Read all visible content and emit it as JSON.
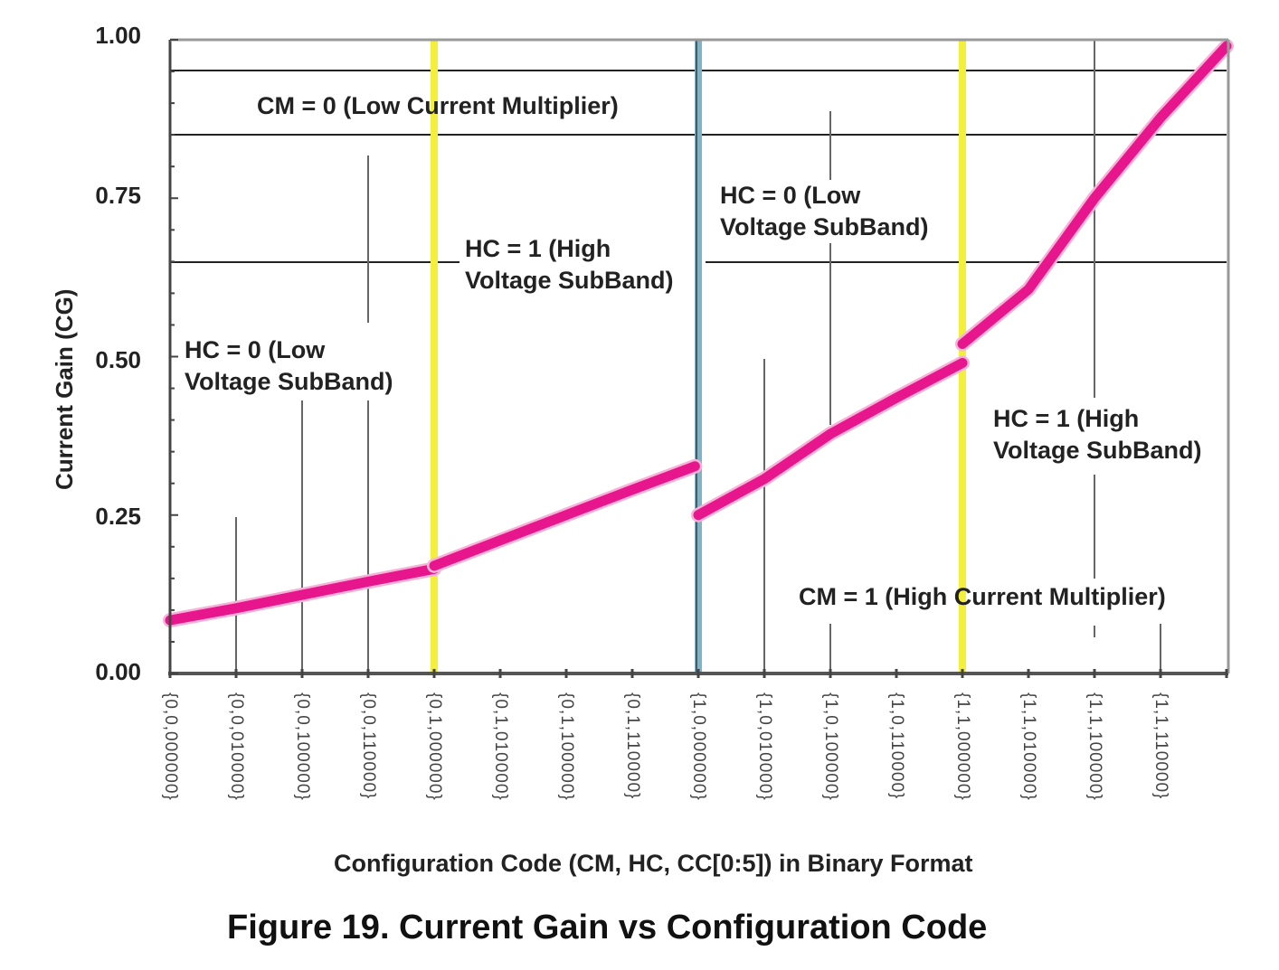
{
  "chart_data": {
    "type": "line",
    "title": "Figure 19. Current Gain vs Configuration Code",
    "xlabel": "Configuration Code (CM, HC, CC[0:5]) in Binary Format",
    "ylabel": "Current Gain (CG)",
    "ylim": [
      0,
      1
    ],
    "yticks": [
      "0.00",
      "0.25",
      "0.50",
      "0.75",
      "1.00"
    ],
    "ytick_values": [
      0,
      0.25,
      0.5,
      0.75,
      1.0
    ],
    "xlim": [
      0,
      16
    ],
    "categories": [
      "{0,0,000000}",
      "{0,0,010000}",
      "{0,0,100000}",
      "{0,0,110000}",
      "{0,1,000000}",
      "{0,1,010000}",
      "{0,1,100000}",
      "{0,1,110000}",
      "{1,0,000000}",
      "{1,0,010000}",
      "{1,0,100000}",
      "{1,0,110000}",
      "{1,1,000000}",
      "{1,1,010000}",
      "{1,1,100000}",
      "{1,1,110000}"
    ],
    "series": [
      {
        "name": "CM=0, HC=0",
        "x": [
          0,
          1,
          2,
          3,
          4
        ],
        "values": [
          0.084,
          0.103,
          0.124,
          0.145,
          0.165
        ]
      },
      {
        "name": "CM=0, HC=1",
        "x": [
          4,
          5,
          6,
          7,
          7.95
        ],
        "values": [
          0.17,
          0.21,
          0.25,
          0.29,
          0.327
        ]
      },
      {
        "name": "CM=1, HC=0",
        "x": [
          8,
          9,
          10,
          11,
          12
        ],
        "values": [
          0.25,
          0.307,
          0.378,
          0.435,
          0.49
        ]
      },
      {
        "name": "CM=1, HC=1",
        "x": [
          12,
          13,
          14,
          15,
          16
        ],
        "values": [
          0.52,
          0.606,
          0.75,
          0.877,
          0.99
        ]
      }
    ],
    "dividers": [
      {
        "x": 4,
        "color": "#f4ef3a"
      },
      {
        "x": 8,
        "color": "#7fb3c8"
      },
      {
        "x": 12,
        "color": "#f4ef3a"
      }
    ],
    "line_color": "#e8168c",
    "annotations": {
      "cm0": "CM = 0 (Low Current Multiplier)",
      "cm1": "CM = 1 (High Current Multiplier)",
      "hc0_left_1": "HC = 0 (Low",
      "hc0_left_2": "Voltage SubBand)",
      "hc1_left_1": "HC = 1 (High",
      "hc1_left_2": "Voltage SubBand)",
      "hc0_right_1": "HC = 0 (Low",
      "hc0_right_2": "Voltage SubBand)",
      "hc1_right_1": "HC = 1 (High",
      "hc1_right_2": "Voltage SubBand)"
    }
  }
}
